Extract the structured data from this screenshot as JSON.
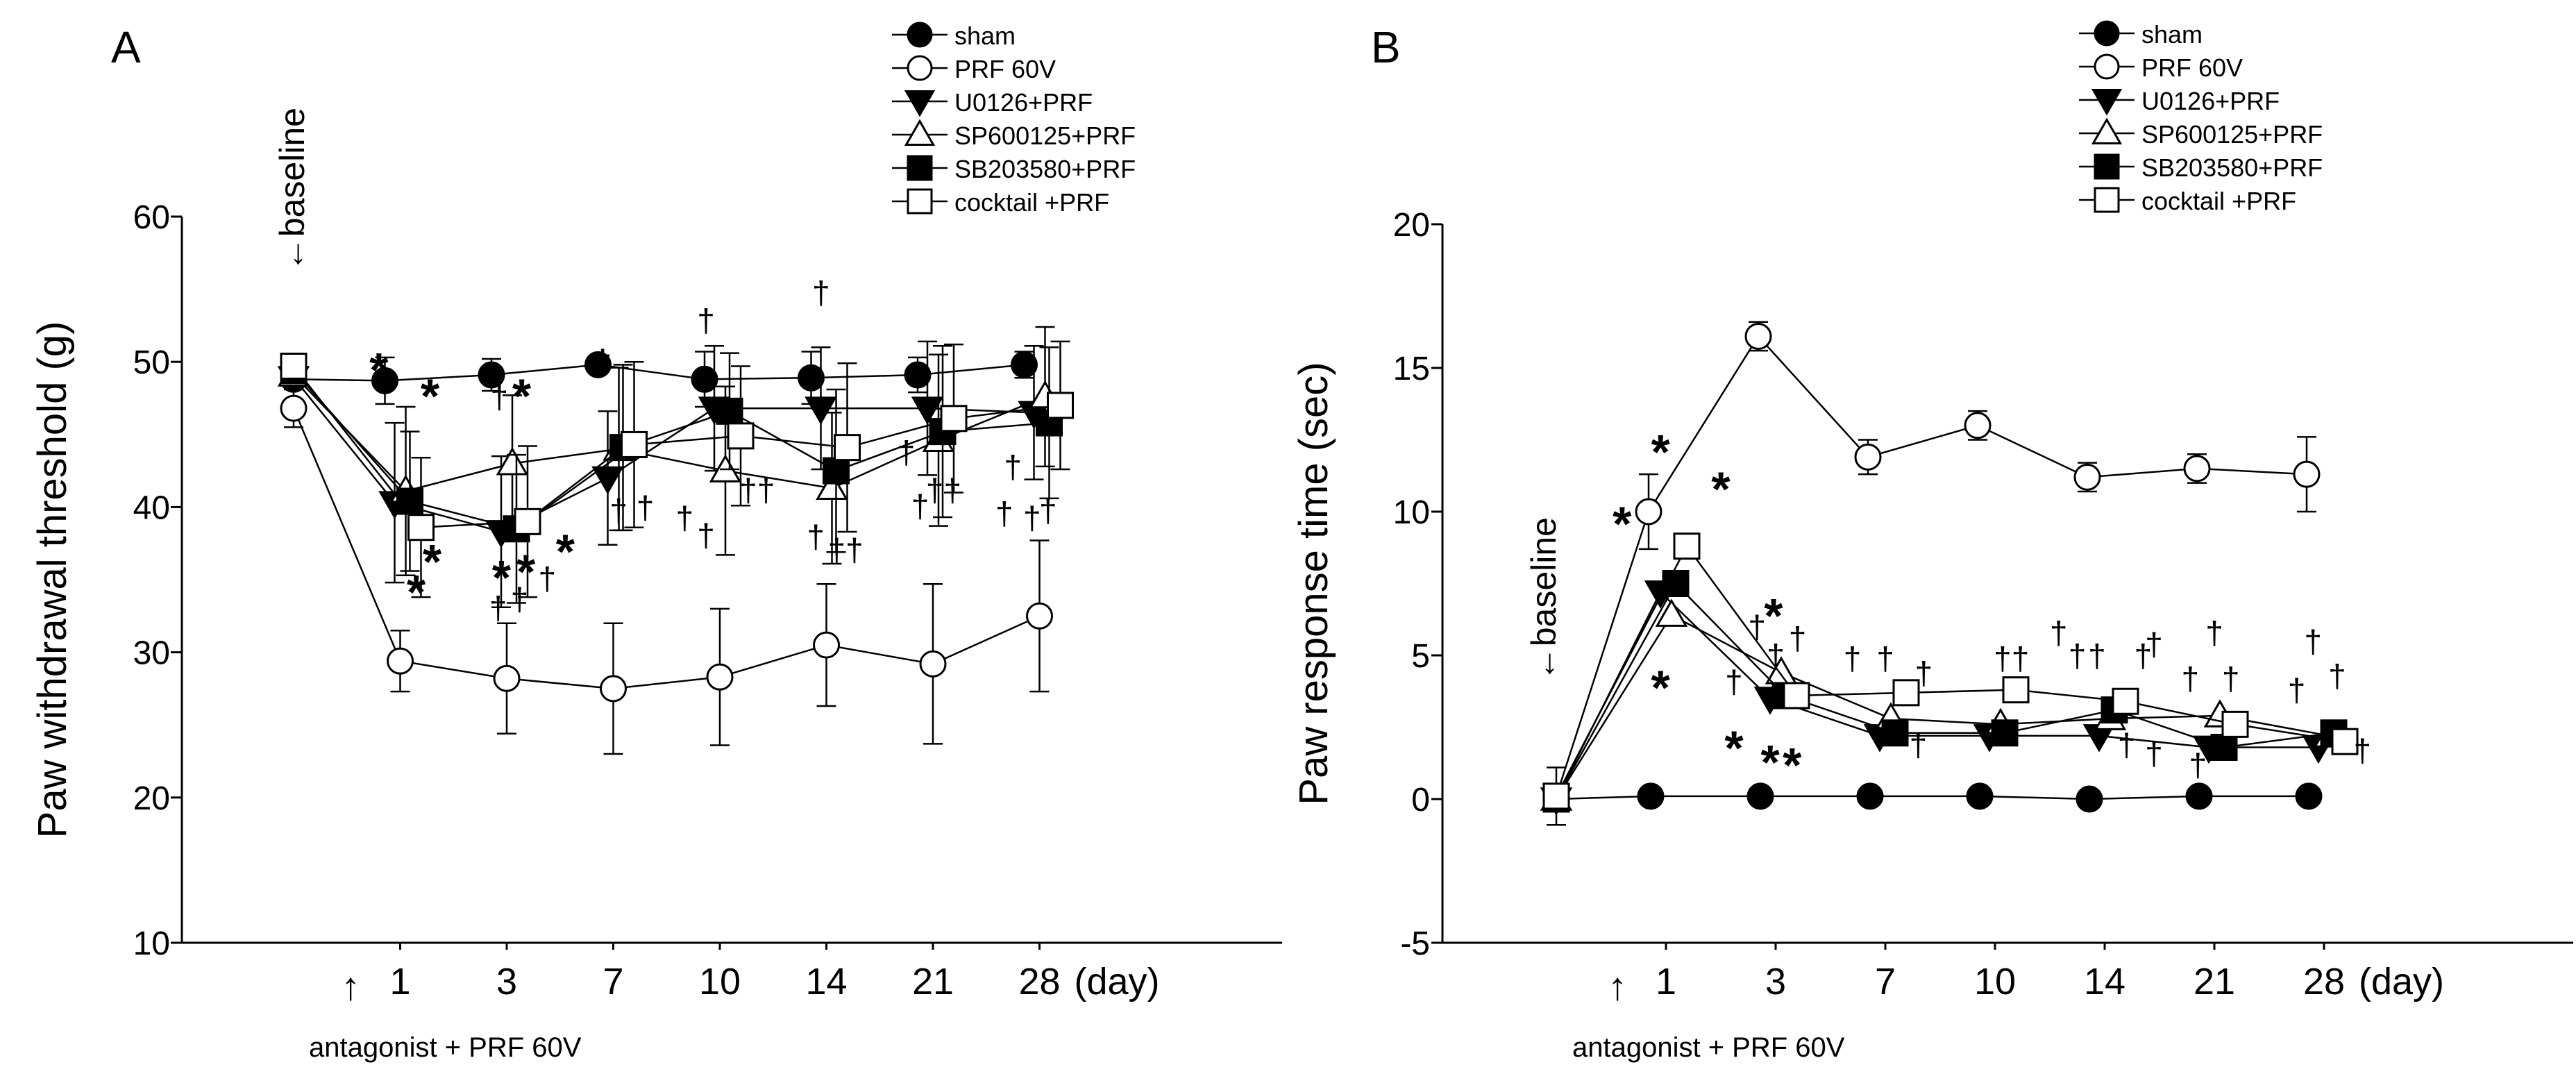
{
  "chart_data": [
    {
      "type": "line",
      "panel_label": "A",
      "ylabel": "Paw withdrawal threshold (g)",
      "ylim": [
        10,
        60
      ],
      "yticks": [
        10,
        20,
        30,
        40,
        50,
        60
      ],
      "xtick_labels": [
        "1",
        "3",
        "7",
        "10",
        "14",
        "21",
        "28"
      ],
      "x_unit": "(day)",
      "baseline_label": "baseline",
      "baseline_arrow": "←",
      "treatment_arrow": "↑",
      "treatment_label": "antagonist + PRF 60V",
      "legend_position": "top-right",
      "x_positions": [
        0,
        1,
        2,
        3,
        4,
        5,
        6,
        7
      ],
      "series": [
        {
          "name": "sham",
          "marker": "circle",
          "fill": "#000000",
          "values": [
            48.8,
            48.7,
            49.1,
            49.8,
            48.8,
            48.9,
            49.1,
            49.8
          ],
          "errors": [
            0.5,
            1.6,
            1.1,
            0.6,
            1.9,
            1.8,
            1.2,
            0.9
          ]
        },
        {
          "name": "PRF 60V",
          "marker": "circle",
          "fill": "#ffffff",
          "values": [
            46.8,
            29.4,
            28.2,
            27.5,
            28.3,
            30.5,
            29.2,
            32.5
          ],
          "errors": [
            1.3,
            2.1,
            3.8,
            4.5,
            4.7,
            4.2,
            5.5,
            5.2
          ]
        },
        {
          "name": "U0126+PRF",
          "marker": "triangle-down",
          "fill": "#000000",
          "values": [
            48.9,
            40.3,
            38.3,
            42.0,
            46.8,
            46.8,
            46.8,
            46.5
          ],
          "errors": [
            0.6,
            5.5,
            5.2,
            4.6,
            4.3,
            4.2,
            4.6,
            4.6
          ]
        },
        {
          "name": "SP600125+PRF",
          "marker": "triangle-up",
          "fill": "#ffffff",
          "values": [
            49.1,
            41.1,
            43.0,
            44.0,
            42.5,
            41.3,
            44.6,
            47.6
          ],
          "errors": [
            0.6,
            5.8,
            4.7,
            5.6,
            5.8,
            5.2,
            5.9,
            4.8
          ]
        },
        {
          "name": "SB203580+PRF",
          "marker": "square",
          "fill": "#000000",
          "values": [
            49.4,
            40.4,
            38.5,
            44.1,
            46.6,
            42.5,
            45.2,
            45.8
          ],
          "errors": [
            0.6,
            4.8,
            5.1,
            5.7,
            4.0,
            5.6,
            5.9,
            5.2
          ]
        },
        {
          "name": "cocktail +PRF",
          "marker": "square",
          "fill": "#ffffff",
          "values": [
            49.7,
            38.6,
            39.0,
            44.3,
            44.9,
            44.1,
            46.1,
            47.0
          ],
          "errors": [
            0.6,
            4.8,
            5.2,
            5.7,
            4.8,
            5.8,
            5.1,
            4.4
          ]
        }
      ],
      "significance": [
        {
          "symbol": "*",
          "x": 0.8,
          "y": 48.3
        },
        {
          "symbol": "*",
          "x": 1.28,
          "y": 46.5
        },
        {
          "symbol": "*",
          "x": 1.3,
          "y": 35.1
        },
        {
          "symbol": "*",
          "x": 1.15,
          "y": 33.0
        },
        {
          "symbol": "†",
          "x": 1.93,
          "y": 46.8
        },
        {
          "symbol": "*",
          "x": 2.14,
          "y": 46.5
        },
        {
          "symbol": "*",
          "x": 1.95,
          "y": 34.0
        },
        {
          "symbol": "*",
          "x": 2.18,
          "y": 34.4
        },
        {
          "symbol": "*",
          "x": 2.55,
          "y": 35.8
        },
        {
          "symbol": "†",
          "x": 1.92,
          "y": 32.3
        },
        {
          "symbol": "†",
          "x": 2.12,
          "y": 32.9
        },
        {
          "symbol": "†",
          "x": 2.38,
          "y": 34.3
        },
        {
          "symbol": "†",
          "x": 2.9,
          "y": 49.3
        },
        {
          "symbol": "†",
          "x": 3.05,
          "y": 39.0
        },
        {
          "symbol": "†",
          "x": 3.3,
          "y": 39.2
        },
        {
          "symbol": "†",
          "x": 3.67,
          "y": 38.5
        },
        {
          "symbol": "†",
          "x": 3.87,
          "y": 52.1
        },
        {
          "symbol": "†",
          "x": 3.87,
          "y": 37.3
        },
        {
          "symbol": "††",
          "x": 4.35,
          "y": 40.4
        },
        {
          "symbol": "†",
          "x": 4.95,
          "y": 54.0
        },
        {
          "symbol": "†",
          "x": 4.9,
          "y": 37.2
        },
        {
          "symbol": "††",
          "x": 5.18,
          "y": 36.3
        },
        {
          "symbol": "†",
          "x": 5.75,
          "y": 43.0
        },
        {
          "symbol": "†",
          "x": 5.88,
          "y": 39.3
        },
        {
          "symbol": "††",
          "x": 6.1,
          "y": 40.4
        },
        {
          "symbol": "†",
          "x": 6.75,
          "y": 42.0
        },
        {
          "symbol": "†",
          "x": 6.67,
          "y": 38.8
        },
        {
          "symbol": "†",
          "x": 6.93,
          "y": 38.5
        },
        {
          "symbol": "†",
          "x": 7.08,
          "y": 39.0
        }
      ]
    },
    {
      "type": "line",
      "panel_label": "B",
      "ylabel": "Paw response time (sec)",
      "ylim": [
        -5,
        20
      ],
      "yticks": [
        -5,
        0,
        5,
        10,
        15,
        20
      ],
      "xtick_labels": [
        "1",
        "3",
        "7",
        "10",
        "14",
        "21",
        "28"
      ],
      "x_unit": "(day)",
      "baseline_label": "baseline",
      "baseline_arrow": "←",
      "treatment_arrow": "↑",
      "treatment_label": "antagonist + PRF 60V",
      "legend_position": "top-right",
      "x_positions": [
        0,
        1,
        2,
        3,
        4,
        5,
        6,
        7
      ],
      "series": [
        {
          "name": "sham",
          "marker": "circle",
          "fill": "#000000",
          "values": [
            0.0,
            0.1,
            0.1,
            0.1,
            0.1,
            0.0,
            0.1,
            0.1
          ],
          "errors": [
            0.0,
            0.0,
            0.0,
            0.0,
            0.0,
            0.0,
            0.0,
            0.0
          ]
        },
        {
          "name": "PRF 60V",
          "marker": "circle",
          "fill": "#ffffff",
          "values": [
            0.1,
            10.0,
            16.1,
            11.9,
            13.0,
            11.2,
            11.5,
            11.3
          ],
          "errors": [
            1.0,
            1.3,
            0.5,
            0.6,
            0.5,
            0.5,
            0.5,
            1.3
          ]
        },
        {
          "name": "U0126+PRF",
          "marker": "triangle-down",
          "fill": "#000000",
          "values": [
            0.0,
            7.2,
            3.5,
            2.2,
            2.2,
            2.2,
            1.8,
            1.8
          ]
        },
        {
          "name": "SP600125+PRF",
          "marker": "triangle-up",
          "fill": "#ffffff",
          "values": [
            0.0,
            6.4,
            4.4,
            2.8,
            2.6,
            2.8,
            2.9,
            2.2
          ]
        },
        {
          "name": "SB203580+PRF",
          "marker": "square",
          "fill": "#000000",
          "values": [
            0.0,
            7.5,
            3.6,
            2.3,
            2.3,
            3.1,
            1.8,
            2.3
          ]
        },
        {
          "name": "cocktail +PRF",
          "marker": "square",
          "fill": "#ffffff",
          "values": [
            0.1,
            8.8,
            3.6,
            3.7,
            3.8,
            3.4,
            2.6,
            2.0
          ]
        }
      ],
      "significance": [
        {
          "symbol": "*",
          "x": 0.95,
          "y": 11.5
        },
        {
          "symbol": "*",
          "x": 0.6,
          "y": 9.0
        },
        {
          "symbol": "*",
          "x": 1.5,
          "y": 10.2
        },
        {
          "symbol": "*",
          "x": 0.95,
          "y": 3.3
        },
        {
          "symbol": "*",
          "x": 1.98,
          "y": 5.8
        },
        {
          "symbol": "†",
          "x": 1.83,
          "y": 5.6
        },
        {
          "symbol": "†",
          "x": 1.62,
          "y": 3.7
        },
        {
          "symbol": "†",
          "x": 2.0,
          "y": 4.6
        },
        {
          "symbol": "†",
          "x": 2.2,
          "y": 5.2
        },
        {
          "symbol": "*",
          "x": 1.62,
          "y": 1.2
        },
        {
          "symbol": "*",
          "x": 1.95,
          "y": 0.7
        },
        {
          "symbol": "*",
          "x": 2.15,
          "y": 0.6
        },
        {
          "symbol": "†",
          "x": 2.7,
          "y": 4.5
        },
        {
          "symbol": "†",
          "x": 3.0,
          "y": 4.5
        },
        {
          "symbol": "†",
          "x": 3.3,
          "y": 1.5
        },
        {
          "symbol": "†",
          "x": 3.35,
          "y": 4.0
        },
        {
          "symbol": "††",
          "x": 4.15,
          "y": 4.5
        },
        {
          "symbol": "†",
          "x": 4.58,
          "y": 5.4
        },
        {
          "symbol": "†",
          "x": 4.75,
          "y": 4.6
        },
        {
          "symbol": "†",
          "x": 4.93,
          "y": 4.6
        },
        {
          "symbol": "†",
          "x": 5.35,
          "y": 4.6
        },
        {
          "symbol": "†",
          "x": 5.45,
          "y": 5.0
        },
        {
          "symbol": "†",
          "x": 5.2,
          "y": 1.5
        },
        {
          "symbol": "†",
          "x": 5.45,
          "y": 1.2
        },
        {
          "symbol": "†",
          "x": 5.78,
          "y": 3.8
        },
        {
          "symbol": "†",
          "x": 5.85,
          "y": 0.8
        },
        {
          "symbol": "†",
          "x": 6.0,
          "y": 5.4
        },
        {
          "symbol": "†",
          "x": 6.15,
          "y": 3.8
        },
        {
          "symbol": "†",
          "x": 6.9,
          "y": 5.1
        },
        {
          "symbol": "†",
          "x": 6.75,
          "y": 3.4
        },
        {
          "symbol": "†",
          "x": 7.12,
          "y": 3.9
        },
        {
          "symbol": "†",
          "x": 7.35,
          "y": 1.3
        }
      ]
    }
  ]
}
